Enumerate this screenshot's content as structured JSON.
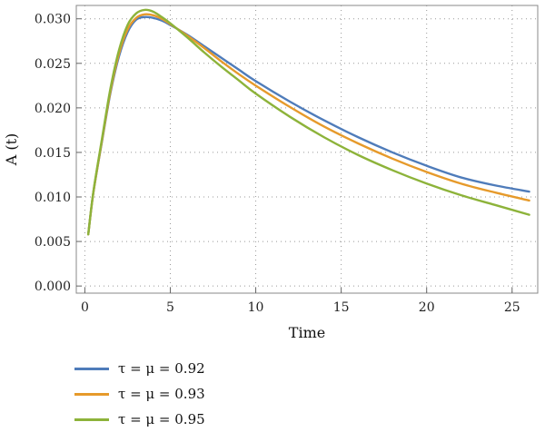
{
  "chart_data": {
    "type": "line",
    "title": "",
    "xlabel": "Time",
    "ylabel": "A (t)",
    "xlim": [
      -0.5,
      26.5
    ],
    "ylim": [
      -0.0008,
      0.0315
    ],
    "xticks": [
      0,
      5,
      10,
      15,
      20,
      25
    ],
    "xtick_labels": [
      "0",
      "5",
      "10",
      "15",
      "20",
      "25"
    ],
    "yticks": [
      0.0,
      0.005,
      0.01,
      0.015,
      0.02,
      0.025,
      0.03
    ],
    "ytick_labels": [
      "0.000",
      "0.005",
      "0.010",
      "0.015",
      "0.020",
      "0.025",
      "0.030"
    ],
    "grid": "dotted",
    "legend_position": "below",
    "x": [
      0.2,
      0.5,
      1,
      1.5,
      2,
      2.5,
      3,
      3.5,
      4,
      4.5,
      5,
      6,
      7,
      8,
      9,
      10,
      12,
      14,
      16,
      18,
      20,
      22,
      24,
      26
    ],
    "series": [
      {
        "name": "τ = μ = 0.92",
        "color": "#4f7cba",
        "values": [
          0.0058,
          0.0105,
          0.0162,
          0.0217,
          0.0258,
          0.0285,
          0.0299,
          0.0302,
          0.0301,
          0.0298,
          0.0293,
          0.0282,
          0.0269,
          0.0256,
          0.0243,
          0.023,
          0.0207,
          0.0186,
          0.0167,
          0.015,
          0.0135,
          0.0122,
          0.0113,
          0.0106
        ]
      },
      {
        "name": "τ = μ = 0.93",
        "color": "#e69a2b",
        "values": [
          0.0058,
          0.0105,
          0.0163,
          0.0219,
          0.0261,
          0.0288,
          0.0301,
          0.0305,
          0.0304,
          0.03,
          0.0294,
          0.0281,
          0.0267,
          0.0252,
          0.0238,
          0.0225,
          0.0201,
          0.0179,
          0.016,
          0.0143,
          0.0128,
          0.0115,
          0.0105,
          0.0096
        ]
      },
      {
        "name": "τ = μ = 0.95",
        "color": "#8db33a",
        "values": [
          0.0058,
          0.0106,
          0.0165,
          0.0222,
          0.0265,
          0.0293,
          0.0306,
          0.031,
          0.0308,
          0.0302,
          0.0295,
          0.0279,
          0.0262,
          0.0246,
          0.0231,
          0.0216,
          0.019,
          0.0167,
          0.0147,
          0.013,
          0.0115,
          0.0102,
          0.0091,
          0.008
        ]
      }
    ]
  }
}
